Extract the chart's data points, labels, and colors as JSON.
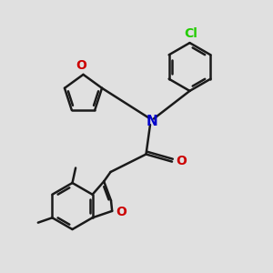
{
  "bg_color": "#e0e0e0",
  "bond_color": "#1a1a1a",
  "bond_width": 1.8,
  "N_color": "#0000cc",
  "O_color": "#cc0000",
  "Cl_color": "#22cc00",
  "font_size": 10,
  "fig_size": [
    3.0,
    3.0
  ],
  "dpi": 100,
  "xlim": [
    0,
    10
  ],
  "ylim": [
    0,
    10
  ]
}
